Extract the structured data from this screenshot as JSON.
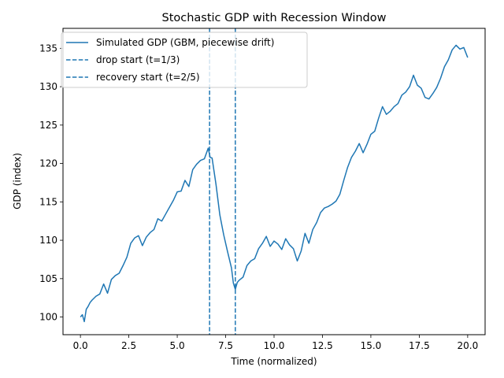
{
  "chart_data": {
    "type": "line",
    "title": "Stochastic GDP with Recession Window",
    "xlabel": "Time (normalized)",
    "ylabel": "GDP (index)",
    "xlim": [
      -0.9,
      20.9
    ],
    "ylim": [
      97.7,
      137.6
    ],
    "xticks": [
      0.0,
      2.5,
      5.0,
      7.5,
      10.0,
      12.5,
      15.0,
      17.5,
      20.0
    ],
    "xtick_labels": [
      "0.0",
      "2.5",
      "5.0",
      "7.5",
      "10.0",
      "12.5",
      "15.0",
      "17.5",
      "20.0"
    ],
    "yticks": [
      100,
      105,
      110,
      115,
      120,
      125,
      130,
      135
    ],
    "ytick_labels": [
      "100",
      "105",
      "110",
      "115",
      "120",
      "125",
      "130",
      "135"
    ],
    "grid": false,
    "legend_position": "upper-left",
    "color": "#1f77b4",
    "series": [
      {
        "name": "Simulated GDP (GBM, piecewise drift)",
        "style": "solid",
        "x": [
          0.0,
          0.1,
          0.2,
          0.3,
          0.4,
          0.5,
          0.6,
          0.8,
          1.0,
          1.2,
          1.4,
          1.6,
          1.8,
          2.0,
          2.2,
          2.4,
          2.6,
          2.8,
          3.0,
          3.2,
          3.4,
          3.6,
          3.8,
          4.0,
          4.2,
          4.4,
          4.6,
          4.8,
          5.0,
          5.2,
          5.4,
          5.6,
          5.8,
          6.0,
          6.2,
          6.4,
          6.6,
          6.7,
          6.8,
          7.0,
          7.2,
          7.4,
          7.6,
          7.8,
          7.9,
          8.0,
          8.1,
          8.2,
          8.4,
          8.6,
          8.8,
          9.0,
          9.2,
          9.4,
          9.6,
          9.8,
          10.0,
          10.2,
          10.4,
          10.6,
          10.8,
          11.0,
          11.2,
          11.4,
          11.6,
          11.8,
          12.0,
          12.2,
          12.4,
          12.6,
          12.8,
          13.0,
          13.2,
          13.4,
          13.6,
          13.8,
          14.0,
          14.2,
          14.4,
          14.6,
          14.8,
          15.0,
          15.2,
          15.4,
          15.6,
          15.8,
          16.0,
          16.2,
          16.4,
          16.6,
          16.8,
          17.0,
          17.2,
          17.4,
          17.6,
          17.8,
          18.0,
          18.2,
          18.4,
          18.6,
          18.8,
          19.0,
          19.2,
          19.4,
          19.6,
          19.8,
          20.0
        ],
        "values": [
          100.0,
          100.3,
          99.4,
          101.0,
          101.4,
          101.9,
          102.2,
          102.7,
          103.0,
          104.3,
          103.1,
          104.9,
          105.4,
          105.7,
          106.7,
          107.8,
          109.6,
          110.3,
          110.6,
          109.3,
          110.4,
          111.0,
          111.4,
          112.8,
          112.5,
          113.4,
          114.3,
          115.2,
          116.3,
          116.4,
          117.8,
          117.0,
          119.2,
          119.9,
          120.4,
          120.6,
          122.0,
          120.8,
          120.7,
          117.3,
          113.3,
          110.7,
          108.5,
          106.4,
          104.4,
          103.6,
          104.5,
          104.8,
          105.2,
          106.7,
          107.3,
          107.6,
          108.9,
          109.6,
          110.5,
          109.2,
          109.9,
          109.5,
          108.8,
          110.2,
          109.4,
          108.9,
          107.3,
          108.6,
          110.9,
          109.6,
          111.4,
          112.3,
          113.6,
          114.2,
          114.4,
          114.7,
          115.1,
          116.0,
          117.8,
          119.5,
          120.8,
          121.6,
          122.6,
          121.4,
          122.5,
          123.8,
          124.2,
          125.9,
          127.4,
          126.4,
          126.8,
          127.4,
          127.8,
          128.9,
          129.3,
          130.0,
          131.5,
          130.2,
          129.8,
          128.6,
          128.4,
          129.1,
          129.9,
          131.1,
          132.6,
          133.5,
          134.8,
          135.4,
          134.9,
          135.1,
          133.8
        ]
      },
      {
        "name": "drop start (t=1/3)",
        "style": "dashed",
        "x_value": 6.67
      },
      {
        "name": "recovery start (t=2/5)",
        "style": "dashed",
        "x_value": 8.0
      }
    ]
  }
}
